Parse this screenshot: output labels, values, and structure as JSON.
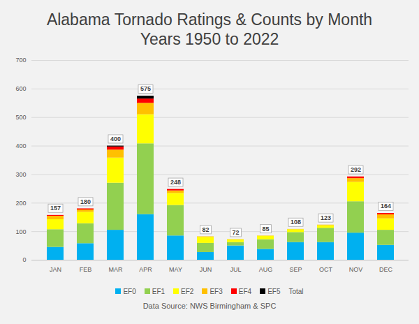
{
  "chart_data": {
    "type": "bar",
    "title": "Alabama Tornado Ratings & Counts by Month",
    "subtitle": "Years 1950 to 2022",
    "caption": "Data Source: NWS Birmingham & SPC",
    "categories": [
      "JAN",
      "FEB",
      "MAR",
      "APR",
      "MAY",
      "JUN",
      "JUL",
      "AUG",
      "SEP",
      "OCT",
      "NOV",
      "DEC"
    ],
    "series": [
      {
        "name": "EF0",
        "color": "#00b0f0",
        "values": [
          45,
          58,
          105,
          160,
          85,
          27,
          50,
          38,
          62,
          62,
          95,
          52
        ]
      },
      {
        "name": "EF1",
        "color": "#92d050",
        "values": [
          62,
          70,
          165,
          248,
          107,
          32,
          12,
          34,
          35,
          50,
          110,
          53
        ]
      },
      {
        "name": "EF2",
        "color": "#ffff00",
        "values": [
          35,
          40,
          88,
          102,
          42,
          21,
          9,
          12,
          10,
          9,
          68,
          40
        ]
      },
      {
        "name": "EF3",
        "color": "#ffc000",
        "values": [
          12,
          8,
          28,
          40,
          9,
          2,
          1,
          1,
          1,
          2,
          13,
          14
        ]
      },
      {
        "name": "EF4",
        "color": "#ff0000",
        "values": [
          3,
          4,
          11,
          15,
          5,
          0,
          0,
          0,
          0,
          0,
          6,
          5
        ]
      },
      {
        "name": "EF5",
        "color": "#000000",
        "values": [
          0,
          0,
          3,
          10,
          0,
          0,
          0,
          0,
          0,
          0,
          0,
          0
        ]
      }
    ],
    "totals": {
      "name": "Total",
      "values": [
        157,
        180,
        400,
        575,
        248,
        82,
        72,
        85,
        108,
        123,
        292,
        164
      ]
    },
    "stacked": true,
    "legend": "bottom",
    "ylim": [
      0,
      700
    ],
    "yticks": [
      0,
      100,
      200,
      300,
      400,
      500,
      600,
      700
    ],
    "grid": true
  }
}
